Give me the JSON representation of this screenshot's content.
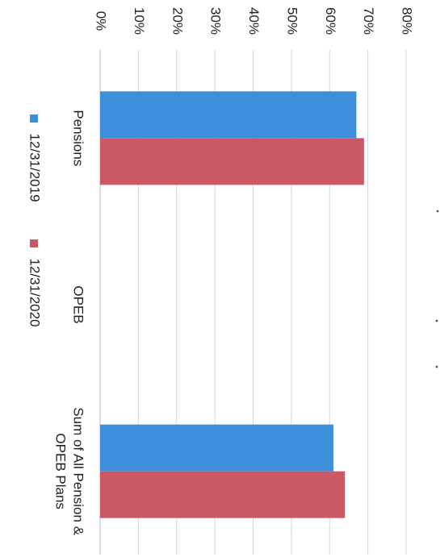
{
  "chart_data": {
    "type": "bar",
    "categories": [
      "Pensions",
      "OPEB",
      "Sum of All Pension & OPEB Plans"
    ],
    "category_lines": [
      [
        "Pensions"
      ],
      [
        "OPEB"
      ],
      [
        "Sum of All Pension &",
        "OPEB Plans"
      ]
    ],
    "series": [
      {
        "name": "12/31/2019",
        "color": "#3d8fdc",
        "values": [
          0.67,
          null,
          0.61
        ]
      },
      {
        "name": "12/31/2020",
        "color": "#cb5865",
        "values": [
          0.69,
          null,
          0.64
        ]
      }
    ],
    "ylim": [
      0,
      0.8
    ],
    "yticks": [
      "0%",
      "10%",
      "20%",
      "30%",
      "40%",
      "50%",
      "60%",
      "70%",
      "80%"
    ],
    "grid": true,
    "legend_position": "bottom",
    "orientation": "rotated 90° clockwise"
  }
}
